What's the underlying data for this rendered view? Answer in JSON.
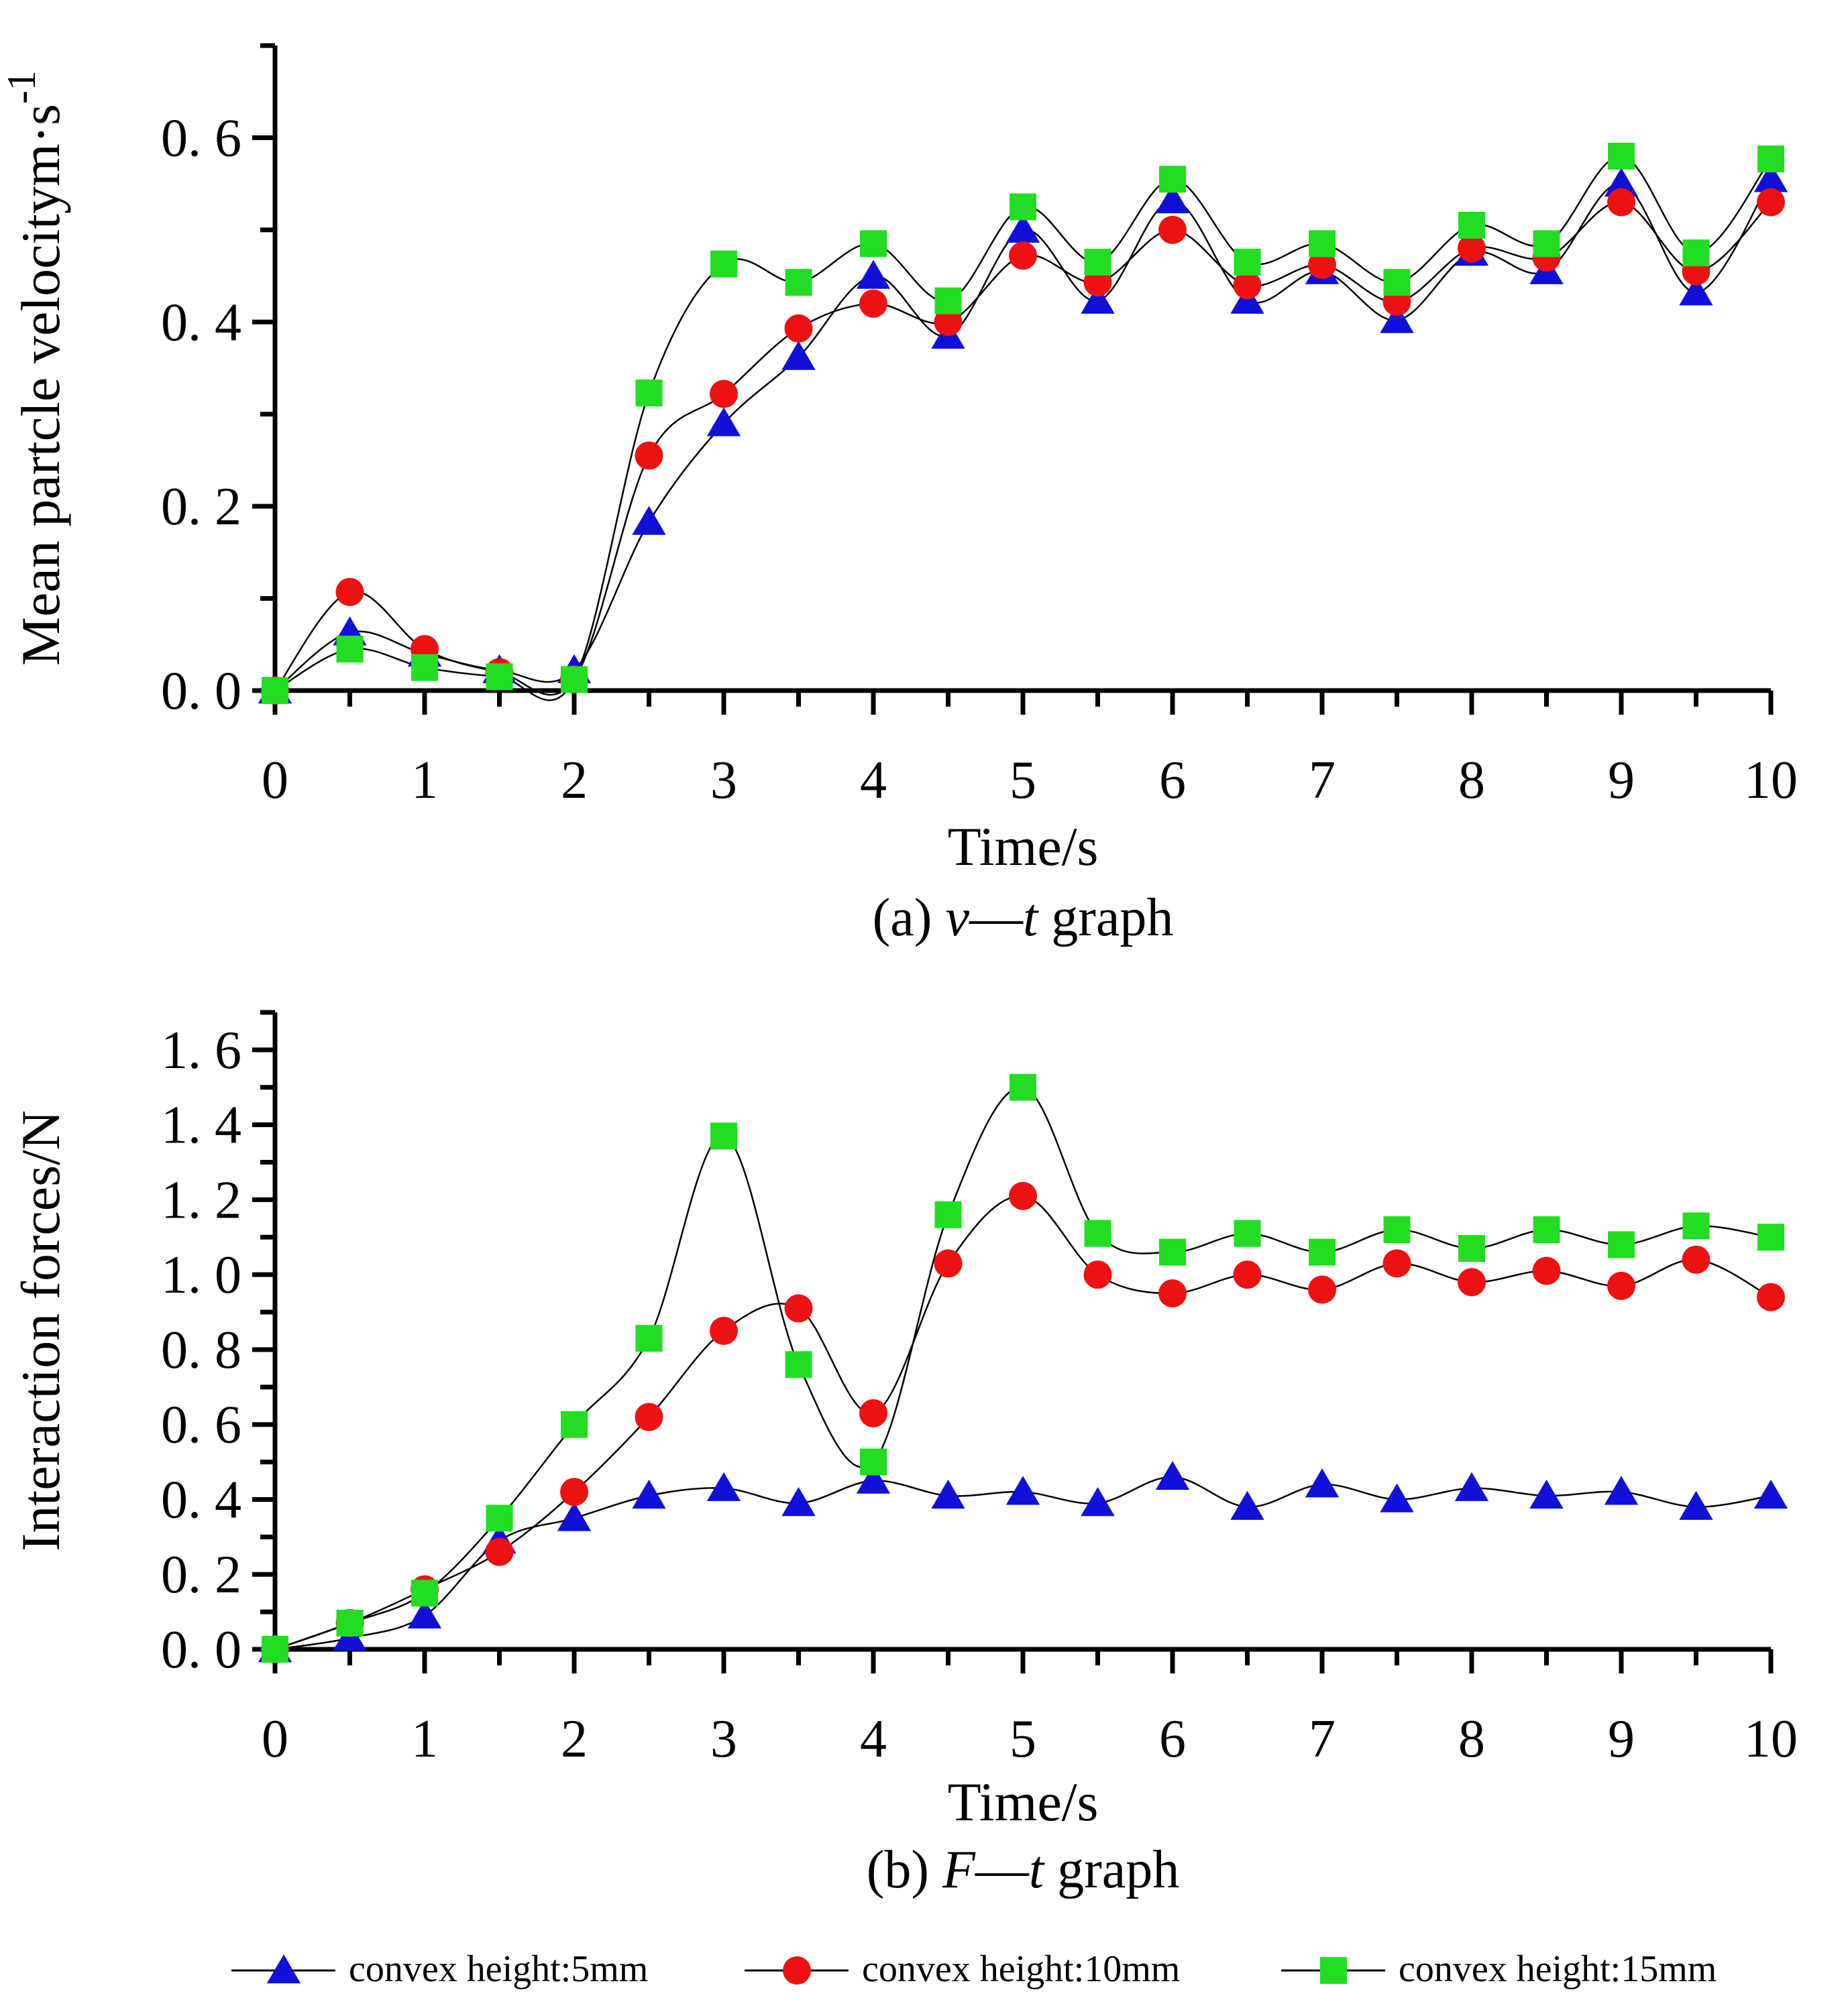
{
  "chart_data": [
    {
      "type": "line",
      "panel": "a",
      "caption": {
        "prefix": "(a) ",
        "var1": "v",
        "dash": "—",
        "var2": "t",
        "suffix": " graph"
      },
      "xlabel": "Time/s",
      "ylabel": "Mean partcle velocitym·s",
      "ylabel_superscript": "-1",
      "xlim": [
        0,
        10
      ],
      "ylim": [
        0,
        0.7
      ],
      "xticks": [
        0,
        1,
        2,
        3,
        4,
        5,
        6,
        7,
        8,
        9,
        10
      ],
      "xtick_labels": [
        "0",
        "1",
        "2",
        "3",
        "4",
        "5",
        "6",
        "7",
        "8",
        "9",
        "10"
      ],
      "yticks": [
        0,
        0.2,
        0.4,
        0.6
      ],
      "ytick_labels": [
        "0. 0",
        "0. 2",
        "0. 4",
        "0. 6"
      ],
      "x": [
        0,
        0.5,
        1,
        1.5,
        2,
        2.5,
        3,
        3.5,
        4,
        4.5,
        5,
        5.5,
        6,
        6.5,
        7,
        7.5,
        8,
        8.5,
        9,
        9.5,
        10
      ],
      "series": [
        {
          "name": "convex height:5mm",
          "marker": "triangle",
          "color": "#1010d8",
          "values": [
            0.0,
            0.063,
            0.04,
            0.022,
            0.022,
            0.183,
            0.29,
            0.362,
            0.45,
            0.385,
            0.5,
            0.423,
            0.532,
            0.423,
            0.455,
            0.402,
            0.475,
            0.455,
            0.55,
            0.432,
            0.555
          ]
        },
        {
          "name": "convex height:10mm",
          "marker": "circle",
          "color": "#ee1111",
          "values": [
            0.0,
            0.107,
            0.045,
            0.02,
            0.012,
            0.255,
            0.322,
            0.393,
            0.42,
            0.4,
            0.472,
            0.443,
            0.5,
            0.44,
            0.462,
            0.422,
            0.48,
            0.47,
            0.53,
            0.455,
            0.53
          ]
        },
        {
          "name": "convex height:15mm",
          "marker": "square",
          "color": "#22dd22",
          "values": [
            0.0,
            0.045,
            0.025,
            0.015,
            0.012,
            0.323,
            0.463,
            0.443,
            0.485,
            0.423,
            0.525,
            0.465,
            0.555,
            0.465,
            0.485,
            0.443,
            0.505,
            0.485,
            0.58,
            0.475,
            0.577
          ]
        }
      ]
    },
    {
      "type": "line",
      "panel": "b",
      "caption": {
        "prefix": "(b) ",
        "var1": "F",
        "dash": "—",
        "var2": "t",
        "suffix": " graph"
      },
      "xlabel": "Time/s",
      "ylabel": "Interaction forces/N",
      "xlim": [
        0,
        10
      ],
      "ylim": [
        0,
        1.7
      ],
      "xticks": [
        0,
        1,
        2,
        3,
        4,
        5,
        6,
        7,
        8,
        9,
        10
      ],
      "xtick_labels": [
        "0",
        "1",
        "2",
        "3",
        "4",
        "5",
        "6",
        "7",
        "8",
        "9",
        "10"
      ],
      "yticks": [
        0,
        0.2,
        0.4,
        0.6,
        0.8,
        1.0,
        1.2,
        1.4,
        1.6
      ],
      "ytick_labels": [
        "0. 0",
        "0. 2",
        "0. 4",
        "0. 6",
        "0. 8",
        "1. 0",
        "1. 2",
        "1. 4",
        "1. 6"
      ],
      "x": [
        0,
        0.5,
        1,
        1.5,
        2,
        2.5,
        3,
        3.5,
        4,
        4.5,
        5,
        5.5,
        6,
        6.5,
        7,
        7.5,
        8,
        8.5,
        9,
        9.5,
        10
      ],
      "series": [
        {
          "name": "convex height:5mm",
          "marker": "triangle",
          "color": "#1010d8",
          "values": [
            0.0,
            0.03,
            0.09,
            0.29,
            0.35,
            0.41,
            0.43,
            0.39,
            0.45,
            0.41,
            0.42,
            0.39,
            0.46,
            0.38,
            0.44,
            0.4,
            0.43,
            0.41,
            0.42,
            0.38,
            0.41
          ]
        },
        {
          "name": "convex height:10mm",
          "marker": "circle",
          "color": "#ee1111",
          "values": [
            0.0,
            0.07,
            0.16,
            0.26,
            0.42,
            0.62,
            0.85,
            0.91,
            0.63,
            1.03,
            1.21,
            1.0,
            0.95,
            1.0,
            0.96,
            1.03,
            0.98,
            1.01,
            0.97,
            1.04,
            0.94
          ]
        },
        {
          "name": "convex height:15mm",
          "marker": "square",
          "color": "#22dd22",
          "values": [
            0.0,
            0.07,
            0.15,
            0.35,
            0.6,
            0.83,
            1.37,
            0.76,
            0.5,
            1.16,
            1.5,
            1.11,
            1.06,
            1.11,
            1.06,
            1.12,
            1.07,
            1.12,
            1.08,
            1.13,
            1.1
          ]
        }
      ]
    }
  ],
  "legend": {
    "position": "bottom",
    "items": [
      {
        "label": "convex height:5mm",
        "marker": "triangle",
        "color": "#1010d8"
      },
      {
        "label": "convex height:10mm",
        "marker": "circle",
        "color": "#ee1111"
      },
      {
        "label": "convex height:15mm",
        "marker": "square",
        "color": "#22dd22"
      }
    ]
  }
}
